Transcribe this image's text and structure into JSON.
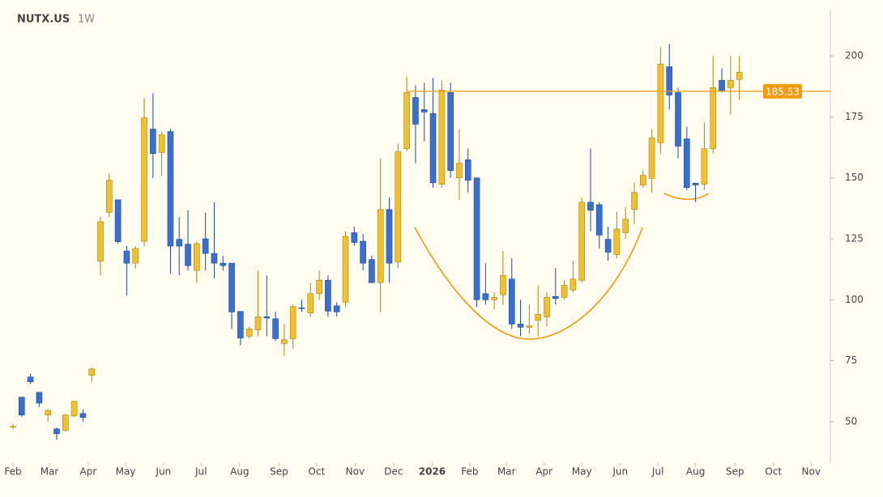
{
  "chart_data": {
    "type": "candlestick",
    "title": "NUTX.US",
    "subtitle": "1W",
    "up_color": "#f0c030",
    "down_color": "#3a6fd0",
    "x": [
      0,
      1,
      2,
      3,
      4,
      5,
      6,
      7,
      8,
      9,
      10,
      11,
      12,
      13,
      14,
      15,
      16,
      17,
      18,
      19,
      20,
      21,
      22,
      23,
      24,
      25,
      26,
      27,
      28,
      29,
      30,
      31,
      32,
      33,
      34,
      35,
      36,
      37,
      38,
      39,
      40,
      41,
      42,
      43,
      44,
      45,
      46,
      47,
      48,
      49,
      50,
      51,
      52,
      53,
      54,
      55,
      56,
      57,
      58,
      59,
      60,
      61,
      62,
      63,
      64,
      65,
      66,
      67,
      68,
      69,
      70,
      71,
      72,
      73,
      74,
      75,
      76,
      77,
      78,
      79,
      80,
      81,
      82,
      83
    ],
    "open": [
      48,
      60,
      68.3,
      62,
      52.7,
      47,
      46.3,
      52.3,
      53.3,
      69,
      115.8,
      135.8,
      141,
      120,
      115,
      124,
      170,
      160.4,
      169,
      124.8,
      122.8,
      112,
      125,
      119,
      115,
      115,
      95.2,
      85,
      87.6,
      93,
      92.2,
      82,
      84,
      96.7,
      94.6,
      102.5,
      108,
      97.5,
      99,
      127.5,
      124,
      116.5,
      107,
      137,
      115.5,
      162,
      183,
      178,
      176.4,
      147.4,
      185,
      150,
      157.4,
      150,
      102.5,
      100,
      102,
      108.5,
      90,
      88.7,
      91.5,
      93,
      101.3,
      101,
      104,
      108,
      140,
      139,
      124.8,
      118.5,
      127.5,
      137,
      147,
      149.8,
      164.4,
      195.6,
      185,
      166,
      147.8,
      147.4,
      162,
      190,
      187,
      190.4
    ],
    "high": [
      49,
      60,
      69.7,
      62,
      55,
      47.5,
      53,
      58.5,
      55,
      72,
      134,
      151.7,
      141,
      122,
      122,
      182.7,
      184.7,
      169,
      170,
      134,
      136.7,
      124,
      135.8,
      140,
      118,
      115,
      95.2,
      89,
      111.7,
      110,
      95,
      90,
      98,
      100,
      107,
      112,
      110,
      99,
      128,
      130,
      127,
      118,
      158,
      142,
      164,
      191.6,
      188,
      189,
      191,
      190,
      189,
      170,
      162,
      150,
      115,
      103,
      120,
      117,
      100,
      98,
      106,
      103,
      113,
      108,
      116,
      142,
      162,
      140,
      130,
      136,
      138,
      148,
      153,
      170,
      203.6,
      205,
      187,
      171,
      148,
      172.7,
      200,
      195,
      200,
      200
    ],
    "low": [
      47,
      52,
      65.5,
      56,
      50,
      42.5,
      46,
      52,
      50,
      66,
      110,
      134,
      123,
      101.7,
      112.7,
      122,
      150,
      150.7,
      110.6,
      110,
      112,
      107,
      112,
      108.7,
      112,
      88,
      81.3,
      84,
      85,
      85,
      83,
      77,
      80,
      95,
      93,
      100,
      93,
      93,
      97,
      122,
      112,
      107,
      95,
      107,
      113,
      161,
      156,
      165,
      146,
      146,
      150,
      141,
      144,
      97,
      98,
      96,
      98,
      88,
      85,
      86,
      85,
      89,
      98,
      100,
      103,
      107,
      128,
      121,
      116,
      117,
      125,
      131,
      146,
      144,
      160,
      178,
      158,
      145,
      140,
      145,
      160,
      185,
      176,
      182
    ],
    "close": [
      48,
      52.7,
      66.3,
      57.6,
      54.6,
      45,
      52.7,
      58.3,
      51.7,
      71.6,
      132,
      149,
      123.8,
      115,
      121,
      174.6,
      160,
      167.7,
      122,
      122,
      114,
      123,
      119,
      115,
      114,
      95,
      84.3,
      88,
      93,
      92.5,
      84,
      83.6,
      97.2,
      96.4,
      102.5,
      108,
      95.3,
      95,
      126,
      123.5,
      115,
      107,
      137,
      115,
      160.7,
      185,
      172,
      177,
      148,
      186,
      153,
      156,
      149,
      100,
      100,
      101,
      110,
      90,
      88.7,
      89.3,
      94,
      101,
      100.5,
      106,
      108.5,
      140,
      136.7,
      126.5,
      119.5,
      129,
      133,
      144,
      151,
      166.4,
      196.7,
      184,
      163,
      146,
      147.1,
      162,
      187,
      185.7,
      190,
      193.3
    ],
    "price_line": 185.53,
    "price_line_color": "#f39c12",
    "ylim": [
      33,
      219
    ],
    "yticks": [
      50,
      75,
      100,
      125,
      150,
      175,
      200
    ],
    "xlim": [
      -1.48,
      93.4
    ],
    "xticks": [
      {
        "value": 0,
        "label": "Feb"
      },
      {
        "value": 4.17,
        "label": "Mar"
      },
      {
        "value": 8.6,
        "label": "Apr"
      },
      {
        "value": 12.87,
        "label": "May"
      },
      {
        "value": 17.2,
        "label": "Jun"
      },
      {
        "value": 21.5,
        "label": "Jul"
      },
      {
        "value": 25.9,
        "label": "Aug"
      },
      {
        "value": 30.4,
        "label": "Sep"
      },
      {
        "value": 34.7,
        "label": "Oct"
      },
      {
        "value": 39.1,
        "label": "Nov"
      },
      {
        "value": 43.5,
        "label": "Dec"
      },
      {
        "value": 47.9,
        "label": "2026"
      },
      {
        "value": 52.2,
        "label": "Feb"
      },
      {
        "value": 56.4,
        "label": "Mar"
      },
      {
        "value": 60.7,
        "label": "Apr"
      },
      {
        "value": 65,
        "label": "May"
      },
      {
        "value": 69.4,
        "label": "Jun"
      },
      {
        "value": 73.7,
        "label": "Jul"
      },
      {
        "value": 78,
        "label": "Aug"
      },
      {
        "value": 82.5,
        "label": "Sep"
      },
      {
        "value": 86.9,
        "label": "Oct"
      },
      {
        "value": 91.2,
        "label": "Nov"
      }
    ]
  }
}
